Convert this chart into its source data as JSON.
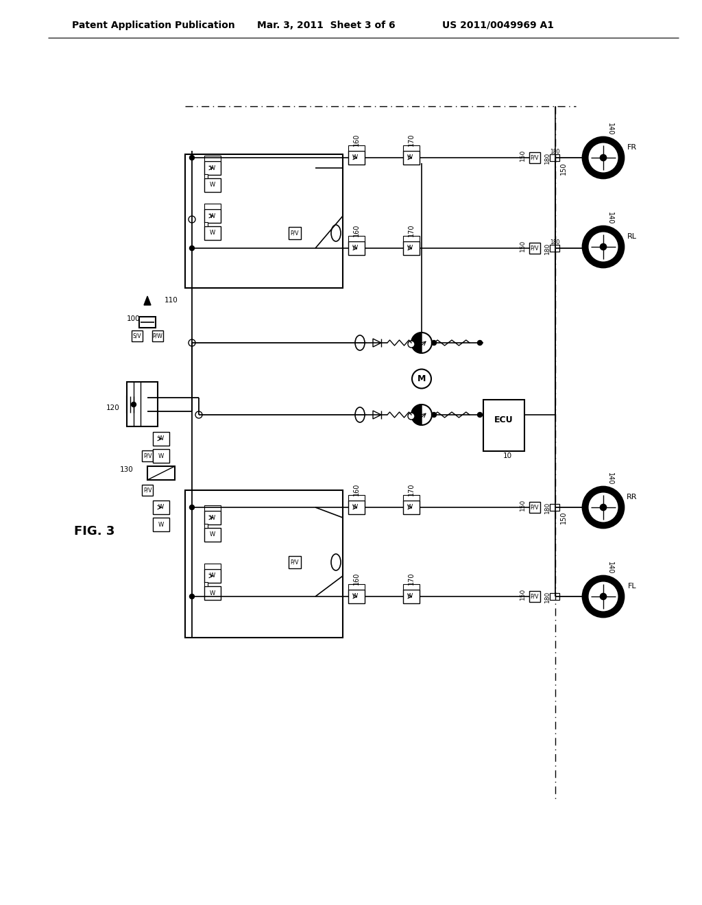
{
  "title_left": "Patent Application Publication",
  "title_mid": "Mar. 3, 2011  Sheet 3 of 6",
  "title_right": "US 2011/0049969 A1",
  "fig_label": "FIG. 3",
  "background_color": "#ffffff",
  "line_color": "#000000",
  "text_color": "#000000",
  "header_fontsize": 10.5,
  "fig_label_fontsize": 13
}
